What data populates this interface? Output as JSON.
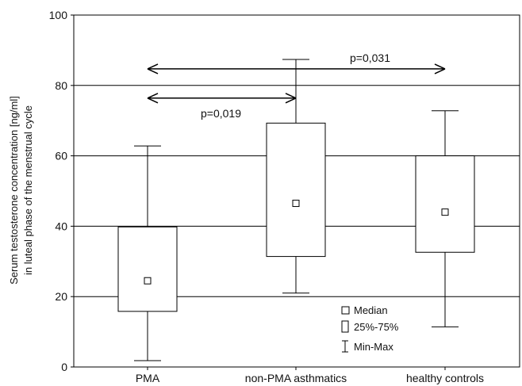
{
  "chart_data": {
    "type": "box",
    "ylabel_line1": "Serum testosterone concentration [ng/ml]",
    "ylabel_line2": "in luteal phase of the menstrual cycle",
    "ylim": [
      0,
      100
    ],
    "yticks": [
      0,
      20,
      40,
      60,
      80,
      100
    ],
    "grid": "horizontal",
    "categories": [
      "PMA",
      "non-PMA asthmatics",
      "healthy controls"
    ],
    "boxes": [
      {
        "label": "PMA",
        "min": 1.8,
        "q1": 15.8,
        "median": 24.5,
        "q3": 39.8,
        "max": 62.8
      },
      {
        "label": "non-PMA asthmatics",
        "min": 21.0,
        "q1": 31.4,
        "median": 46.5,
        "q3": 69.3,
        "max": 87.4
      },
      {
        "label": "healthy controls",
        "min": 11.4,
        "q1": 32.6,
        "median": 44.0,
        "q3": 60.0,
        "max": 72.8
      }
    ],
    "annotations": [
      {
        "text": "p=0,031",
        "from": "PMA",
        "to": "healthy controls",
        "y": 84.7
      },
      {
        "text": "p=0,019",
        "from": "PMA",
        "to": "non-PMA asthmatics",
        "y": 76.4
      }
    ],
    "legend": {
      "position": "bottom-right",
      "items": [
        {
          "symbol": "median",
          "label": "Median"
        },
        {
          "symbol": "box",
          "label": "25%-75%"
        },
        {
          "symbol": "whisker",
          "label": "Min-Max"
        }
      ]
    }
  }
}
